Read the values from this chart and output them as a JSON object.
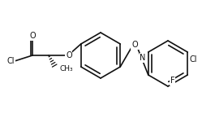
{
  "bg_color": "#ffffff",
  "line_color": "#111111",
  "line_width": 1.2,
  "font_size": 7.0,
  "figsize": [
    2.49,
    1.4
  ],
  "dpi": 100,
  "xlim": [
    0,
    249
  ],
  "ylim": [
    0,
    140
  ]
}
